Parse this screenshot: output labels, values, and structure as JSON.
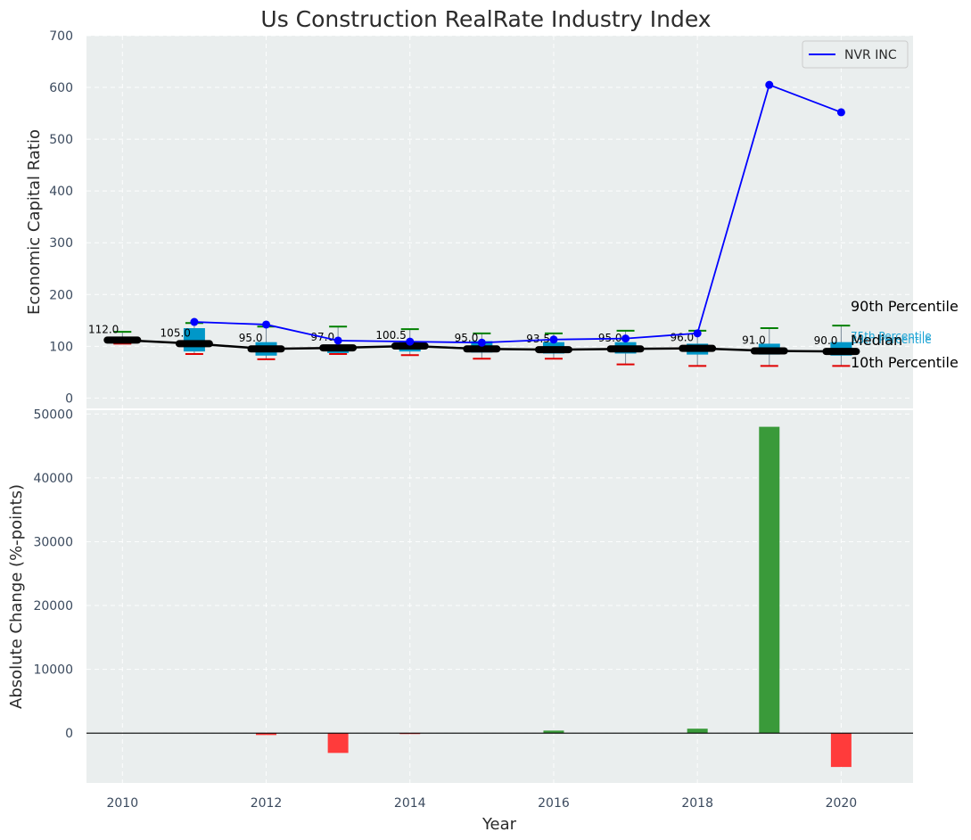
{
  "colors": {
    "panel_bg": "#eaeeee",
    "box_fill": "#0097c8",
    "whisker_top": "#008000",
    "whisker_bottom": "#e00000",
    "median_line": "#000000",
    "company_line": "#0000ff",
    "bar_positive": "#3a9a3a",
    "bar_negative": "#ff3b3b"
  },
  "chart_data": [
    {
      "type": "box-line",
      "title": "Us Construction RealRate Industry Index",
      "xlabel": "",
      "ylabel": "Economic Capital Ratio",
      "ylim": [
        -20,
        700
      ],
      "yticks": [
        0,
        100,
        200,
        300,
        400,
        500,
        600,
        700
      ],
      "x": [
        2010,
        2011,
        2012,
        2013,
        2014,
        2015,
        2016,
        2017,
        2018,
        2019,
        2020
      ],
      "p10": [
        105,
        85,
        75,
        85,
        83,
        76,
        76,
        65,
        62,
        62,
        62
      ],
      "p25": [
        108,
        90,
        82,
        87,
        90,
        88,
        86,
        86,
        84,
        84,
        82
      ],
      "median": [
        112.0,
        105.0,
        95.0,
        97.0,
        100.5,
        95.0,
        93.5,
        95.0,
        96.0,
        91.0,
        90.0
      ],
      "median_labels": [
        "112.0",
        "105.0",
        "95.0",
        "97.0",
        "100.5",
        "95.0",
        "93.5",
        "95.0",
        "96.0",
        "91.0",
        "90.0"
      ],
      "p75": [
        118,
        135,
        108,
        102,
        110,
        110,
        108,
        108,
        105,
        105,
        108
      ],
      "p90": [
        128,
        145,
        138,
        138,
        133,
        125,
        125,
        130,
        130,
        135,
        140
      ],
      "series": [
        {
          "name": "NVR INC",
          "x": [
            2011,
            2012,
            2013,
            2014,
            2015,
            2016,
            2017,
            2018,
            2019,
            2020
          ],
          "values": [
            147,
            142,
            111,
            109,
            107,
            113,
            115,
            125,
            605,
            552
          ]
        }
      ],
      "legend": {
        "position": "top-right",
        "entries": [
          "NVR INC"
        ]
      },
      "annotations": {
        "p90_label": "90th Percentile",
        "median_label": "Median",
        "p10_label": "10th Percentile",
        "p75_label_small": "75th Percentile",
        "p25_label_small": "25th Percentile"
      },
      "grid": true
    },
    {
      "type": "bar",
      "xlabel": "Year",
      "ylabel": "Absolute Change (%-points)",
      "ylim": [
        -7800,
        50600
      ],
      "yticks": [
        0,
        10000,
        20000,
        30000,
        40000,
        50000
      ],
      "xlim": [
        2009.5,
        2021.0
      ],
      "xticks": [
        2010,
        2012,
        2014,
        2016,
        2018,
        2020
      ],
      "x": [
        2012,
        2013,
        2014,
        2016,
        2018,
        2019,
        2020
      ],
      "values": [
        -300,
        -3100,
        -150,
        400,
        700,
        48000,
        -5300
      ],
      "grid": true
    }
  ]
}
